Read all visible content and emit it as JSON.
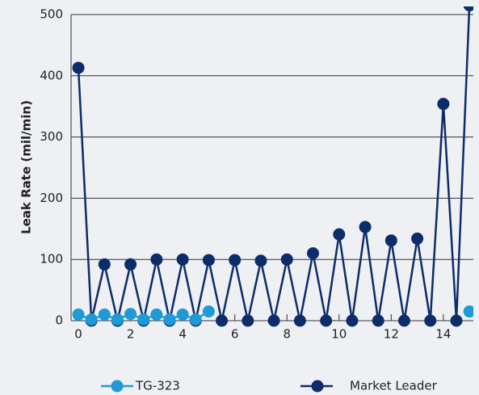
{
  "chart_data": {
    "type": "line",
    "y_label": "Leak Rate (mil/min)",
    "x": [
      0,
      0.5,
      1,
      1.5,
      2,
      2.5,
      3,
      3.5,
      4,
      4.5,
      5,
      5.5,
      6,
      6.5,
      7,
      7.5,
      8,
      8.5,
      9,
      9.5,
      10,
      10.5,
      11,
      11.5,
      12,
      12.5,
      13,
      13.5,
      14,
      14.5,
      15
    ],
    "series": [
      {
        "name": "TG-323",
        "color": "#1f9ad6",
        "values": [
          10,
          2,
          10,
          2,
          11,
          2,
          10,
          2,
          10,
          2,
          15,
          null,
          null,
          null,
          null,
          null,
          null,
          null,
          null,
          null,
          null,
          null,
          null,
          null,
          null,
          null,
          null,
          null,
          null,
          null,
          15
        ]
      },
      {
        "name": "Market Leader",
        "color": "#0c2c6a",
        "values": [
          413,
          0,
          92,
          0,
          92,
          0,
          100,
          0,
          100,
          0,
          99,
          0,
          99,
          0,
          98,
          0,
          100,
          0,
          110,
          0,
          141,
          0,
          153,
          0,
          131,
          0,
          134,
          0,
          354,
          0,
          515
        ]
      }
    ],
    "xlim": [
      -0.28,
      15.15
    ],
    "ylim": [
      0,
      500
    ],
    "xticks": [
      0,
      2,
      4,
      6,
      8,
      10,
      12,
      14
    ],
    "yticks": [
      0,
      100,
      200,
      300,
      400,
      500
    ],
    "grid": true,
    "legend": "bottom"
  }
}
